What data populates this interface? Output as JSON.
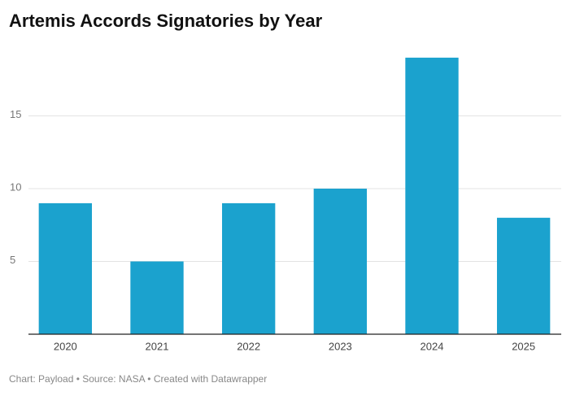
{
  "chart_data": {
    "type": "bar",
    "title": "Artemis Accords Signatories by Year",
    "categories": [
      "2020",
      "2021",
      "2022",
      "2023",
      "2024",
      "2025"
    ],
    "values": [
      9,
      5,
      9,
      10,
      19,
      8
    ],
    "color": "#1ba2ce",
    "ylim": [
      0,
      20
    ],
    "yticks": [
      5,
      10,
      15
    ],
    "grid": true,
    "footer": "Chart: Payload • Source: NASA • Created with Datawrapper"
  }
}
